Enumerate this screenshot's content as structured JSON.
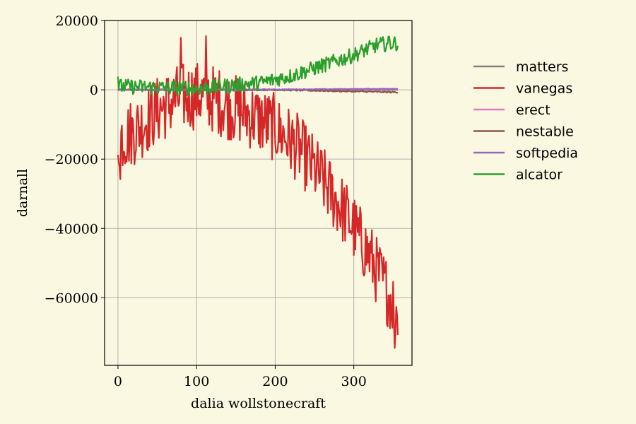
{
  "chart_data": {
    "type": "line",
    "xlabel": "dalia wollstonecraft",
    "ylabel": "darnall",
    "xlim": [
      -17,
      374
    ],
    "ylim": [
      -79500,
      20000
    ],
    "xticks": [
      0,
      100,
      200,
      300
    ],
    "yticks": [
      20000,
      0,
      -20000,
      -40000,
      -60000
    ],
    "ytick_labels": [
      "20000",
      "0",
      "−20000",
      "−40000",
      "−60000"
    ],
    "grid": true,
    "legend_position": "right, outside plot",
    "x": {
      "start": 0,
      "end": 356,
      "step": 1
    },
    "series": [
      {
        "name": "matters",
        "color": "#7f7f7f",
        "anchors": [
          [
            0,
            0
          ],
          [
            356,
            0
          ]
        ],
        "noise": 0
      },
      {
        "name": "vanegas",
        "color": "#d62728",
        "anchors": [
          [
            0,
            -14000
          ],
          [
            20,
            -12000
          ],
          [
            50,
            -6000
          ],
          [
            80,
            -2000
          ],
          [
            110,
            -1500
          ],
          [
            140,
            -4500
          ],
          [
            170,
            -7500
          ],
          [
            200,
            -11000
          ],
          [
            230,
            -17000
          ],
          [
            260,
            -26000
          ],
          [
            290,
            -36000
          ],
          [
            320,
            -48000
          ],
          [
            340,
            -57000
          ],
          [
            356,
            -64000
          ]
        ],
        "noise": 10000,
        "extremes": [
          [
            3,
            -25800
          ],
          [
            80,
            15000
          ],
          [
            112,
            15500
          ],
          [
            352,
            -74500
          ],
          [
            355,
            -65000
          ]
        ]
      },
      {
        "name": "erect",
        "color": "#e377c2",
        "anchors": [
          [
            0,
            0
          ],
          [
            200,
            0
          ],
          [
            356,
            200
          ]
        ],
        "noise": 150
      },
      {
        "name": "nestable",
        "color": "#8c564b",
        "anchors": [
          [
            0,
            0
          ],
          [
            200,
            0
          ],
          [
            356,
            -700
          ]
        ],
        "noise": 200
      },
      {
        "name": "softpedia",
        "color": "#9467bd",
        "anchors": [
          [
            0,
            0
          ],
          [
            200,
            100
          ],
          [
            356,
            300
          ]
        ],
        "noise": 100
      },
      {
        "name": "alcator",
        "color": "#2ca02c",
        "anchors": [
          [
            0,
            1000
          ],
          [
            100,
            400
          ],
          [
            180,
            2000
          ],
          [
            220,
            4000
          ],
          [
            260,
            7000
          ],
          [
            300,
            10000
          ],
          [
            330,
            13000
          ],
          [
            356,
            13500
          ]
        ],
        "noise": 2200,
        "extremes": [
          [
            0,
            3800
          ],
          [
            345,
            15400
          ]
        ]
      }
    ]
  }
}
